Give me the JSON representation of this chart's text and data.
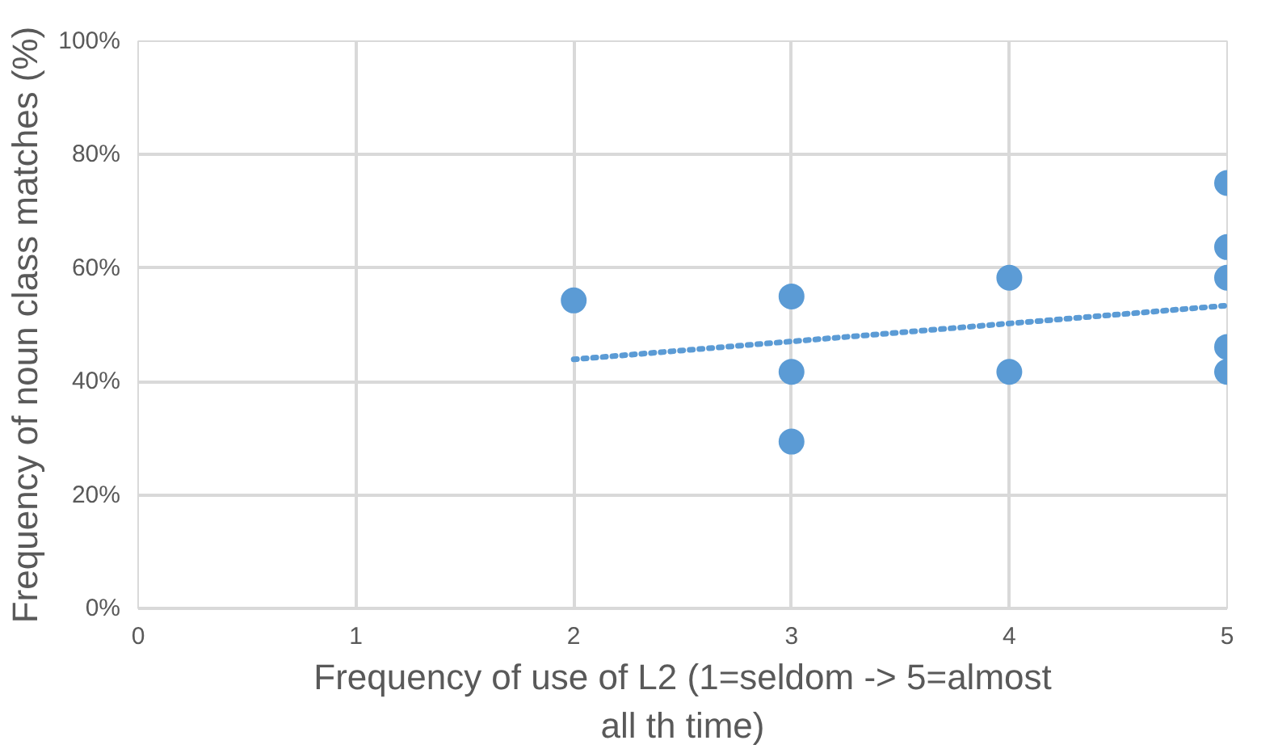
{
  "chart_data": {
    "type": "scatter",
    "xlabel": "Frequency of use of L2 (1=seldom -> 5=almost all th time)",
    "ylabel": "Frequency of noun class matches (%)",
    "xlim": [
      0,
      5
    ],
    "xticks": [
      0,
      1,
      2,
      3,
      4,
      5
    ],
    "ylim": [
      0,
      100
    ],
    "yticks": [
      {
        "value": 0,
        "label": "0%"
      },
      {
        "value": 20,
        "label": "20%"
      },
      {
        "value": 40,
        "label": "40%"
      },
      {
        "value": 60,
        "label": "60%"
      },
      {
        "value": 80,
        "label": "80%"
      },
      {
        "value": 100,
        "label": "100%"
      }
    ],
    "grid": true,
    "series": [
      {
        "marker": "circle",
        "color": "#5b9bd5",
        "x": [
          2,
          3,
          3,
          3,
          4,
          4,
          5,
          5,
          5,
          5,
          5
        ],
        "values": [
          54.3,
          55,
          41.7,
          29.4,
          58.3,
          41.7,
          75,
          63.7,
          58.3,
          46.1,
          41.7
        ]
      },
      {
        "type": "line",
        "line_style": "dotted",
        "marker": "none",
        "color": "#5b9bd5",
        "x": [
          2,
          5
        ],
        "values": [
          43.9,
          53.4
        ]
      }
    ]
  }
}
